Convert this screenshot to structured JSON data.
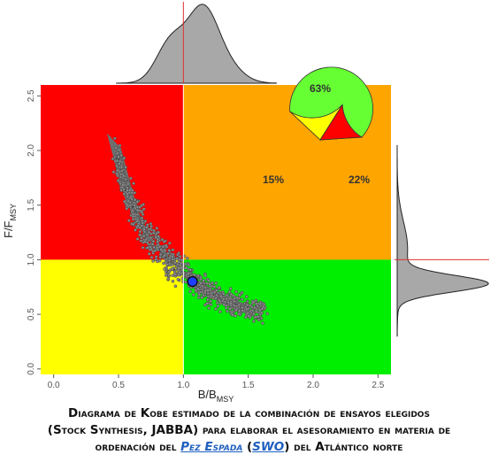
{
  "chart_data": {
    "type": "scatter",
    "title": "",
    "xlabel": "B/B",
    "xlabel_sub": "MSY",
    "ylabel": "F/F",
    "ylabel_sub": "MSY",
    "xlim": [
      -0.1,
      2.6
    ],
    "ylim": [
      -0.05,
      2.6
    ],
    "x_ticks": [
      "0.0",
      "0.5",
      "1.0",
      "1.5",
      "2.0",
      "2.5"
    ],
    "y_ticks": [
      "0.0",
      "0.5",
      "1.0",
      "1.5",
      "2.0",
      "2.5"
    ],
    "reference_lines": {
      "x": 1.0,
      "y": 1.0
    },
    "quadrants": [
      {
        "zone": "B<1, F>1",
        "color": "#ff0000"
      },
      {
        "zone": "B>1, F>1",
        "color": "#ffa500"
      },
      {
        "zone": "B<1, F<1",
        "color": "#ffff00"
      },
      {
        "zone": "B>1, F<1",
        "color": "#00ee00"
      }
    ],
    "median_point": {
      "x": 1.07,
      "y": 0.8,
      "color": "#1f3fff"
    },
    "cloud_trend": [
      {
        "x": 0.46,
        "y": 2.1
      },
      {
        "x": 0.55,
        "y": 1.7
      },
      {
        "x": 0.6,
        "y": 1.5
      },
      {
        "x": 0.7,
        "y": 1.25
      },
      {
        "x": 0.8,
        "y": 1.1
      },
      {
        "x": 0.9,
        "y": 1.0
      },
      {
        "x": 1.0,
        "y": 0.88
      },
      {
        "x": 1.1,
        "y": 0.78
      },
      {
        "x": 1.2,
        "y": 0.7
      },
      {
        "x": 1.35,
        "y": 0.62
      },
      {
        "x": 1.5,
        "y": 0.55
      }
    ],
    "pie": {
      "slices": [
        {
          "label": "63%",
          "value": 63,
          "color": "#66ff33"
        },
        {
          "label": "22%",
          "value": 22,
          "color": "#ffff00"
        },
        {
          "label": "15%",
          "value": 15,
          "color": "#ff0000"
        }
      ]
    },
    "marginal_x_density_peaks": [
      0.9,
      1.15
    ],
    "marginal_y_density_peak": 0.78
  },
  "caption": {
    "line1": "Diagrama de Kobe estimado de la combinación de ensayos elegidos",
    "line2": "(Stock Synthesis, JABBA) para elaborar el asesoramiento en materia de",
    "line3_before": "ordenación del ",
    "link1": "Pez Espada",
    "line3_mid1": " (",
    "link2": "SWO",
    "line3_after": ") del Atlántico norte"
  }
}
